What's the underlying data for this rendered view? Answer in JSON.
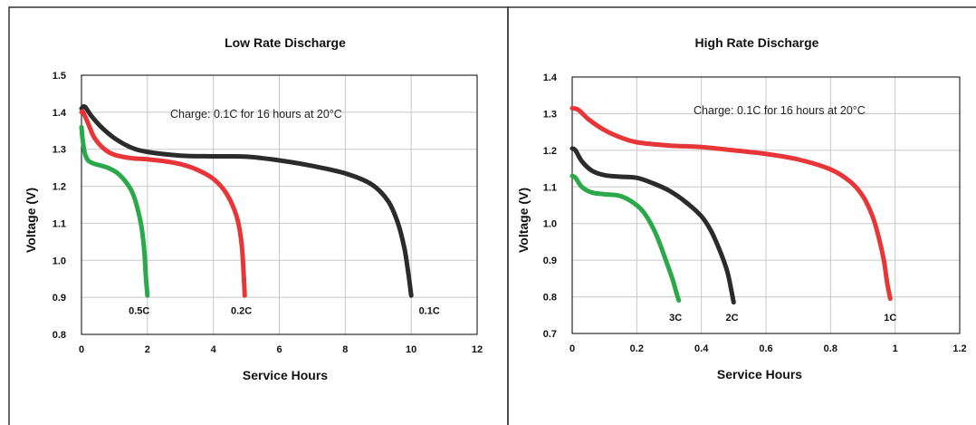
{
  "chart_data": [
    {
      "type": "line",
      "title": "Low Rate Discharge",
      "xlabel": "Service Hours",
      "ylabel": "Voltage (V)",
      "xlim": [
        0,
        12
      ],
      "ylim": [
        0.8,
        1.5
      ],
      "xticks": [
        "0",
        "2",
        "4",
        "6",
        "8",
        "10",
        "12"
      ],
      "yticks": [
        "0.8",
        "0.9",
        "1.0",
        "1.1",
        "1.2",
        "1.3",
        "1.4",
        "1.5"
      ],
      "grid": true,
      "annotation": "Charge: 0.1C for 16 hours at 20°C",
      "series": [
        {
          "name": "0.1C",
          "color": "#2b2b2b",
          "x": [
            0,
            0.1,
            0.3,
            0.6,
            1.0,
            1.5,
            2.0,
            3.0,
            4.0,
            5.0,
            6.0,
            7.0,
            8.0,
            8.8,
            9.3,
            9.6,
            9.8,
            9.92,
            10.0
          ],
          "y": [
            1.41,
            1.415,
            1.39,
            1.36,
            1.33,
            1.305,
            1.293,
            1.283,
            1.281,
            1.28,
            1.27,
            1.255,
            1.235,
            1.205,
            1.16,
            1.1,
            1.03,
            0.96,
            0.905
          ]
        },
        {
          "name": "0.2C",
          "color": "#e83538",
          "x": [
            0,
            0.05,
            0.2,
            0.4,
            0.7,
            1.0,
            1.5,
            2.0,
            2.5,
            3.0,
            3.5,
            4.0,
            4.4,
            4.7,
            4.85,
            4.92,
            4.95
          ],
          "y": [
            1.4,
            1.4,
            1.37,
            1.33,
            1.3,
            1.285,
            1.276,
            1.273,
            1.268,
            1.26,
            1.245,
            1.22,
            1.18,
            1.12,
            1.05,
            0.96,
            0.905
          ]
        },
        {
          "name": "0.5C",
          "color": "#2aa84a",
          "x": [
            0,
            0.03,
            0.1,
            0.2,
            0.35,
            0.5,
            0.8,
            1.1,
            1.4,
            1.6,
            1.8,
            1.9,
            1.95,
            2.0
          ],
          "y": [
            1.36,
            1.33,
            1.29,
            1.27,
            1.262,
            1.258,
            1.25,
            1.235,
            1.205,
            1.17,
            1.1,
            1.03,
            0.96,
            0.905
          ]
        }
      ],
      "curve_labels": [
        {
          "text": "0.5C",
          "x": 1.75,
          "y": 0.865
        },
        {
          "text": "0.2C",
          "x": 4.85,
          "y": 0.865
        },
        {
          "text": "0.1C",
          "x": 10.55,
          "y": 0.865
        }
      ]
    },
    {
      "type": "line",
      "title": "High Rate Discharge",
      "xlabel": "Service Hours",
      "ylabel": "Voltage (V)",
      "xlim": [
        0,
        1.2
      ],
      "ylim": [
        0.7,
        1.4
      ],
      "xticks": [
        "0",
        "0.2",
        "0.4",
        "0.6",
        "0.8",
        "1",
        "1.2"
      ],
      "yticks": [
        "0.7",
        "0.8",
        "0.9",
        "1.0",
        "1.1",
        "1.2",
        "1.3",
        "1.4"
      ],
      "grid": true,
      "annotation": "Charge: 0.1C for 16 hours at 20°C",
      "series": [
        {
          "name": "1C",
          "color": "#e83538",
          "x": [
            0,
            0.02,
            0.05,
            0.1,
            0.15,
            0.2,
            0.3,
            0.4,
            0.5,
            0.6,
            0.7,
            0.8,
            0.86,
            0.9,
            0.93,
            0.95,
            0.965,
            0.975,
            0.985
          ],
          "y": [
            1.315,
            1.31,
            1.285,
            1.255,
            1.235,
            1.222,
            1.213,
            1.209,
            1.2,
            1.19,
            1.175,
            1.148,
            1.115,
            1.075,
            1.02,
            0.96,
            0.9,
            0.84,
            0.795
          ]
        },
        {
          "name": "2C",
          "color": "#2b2b2b",
          "x": [
            0,
            0.01,
            0.03,
            0.06,
            0.1,
            0.15,
            0.2,
            0.25,
            0.3,
            0.35,
            0.4,
            0.43,
            0.46,
            0.48,
            0.49,
            0.5
          ],
          "y": [
            1.205,
            1.2,
            1.17,
            1.145,
            1.132,
            1.128,
            1.125,
            1.11,
            1.09,
            1.06,
            1.02,
            0.98,
            0.92,
            0.87,
            0.83,
            0.785
          ]
        },
        {
          "name": "3C",
          "color": "#2aa84a",
          "x": [
            0,
            0.01,
            0.03,
            0.06,
            0.1,
            0.15,
            0.2,
            0.23,
            0.26,
            0.29,
            0.31,
            0.32,
            0.33
          ],
          "y": [
            1.13,
            1.125,
            1.1,
            1.085,
            1.08,
            1.075,
            1.05,
            1.02,
            0.97,
            0.9,
            0.85,
            0.82,
            0.79
          ]
        }
      ],
      "curve_labels": [
        {
          "text": "3C",
          "x": 0.32,
          "y": 0.745
        },
        {
          "text": "2C",
          "x": 0.495,
          "y": 0.745
        },
        {
          "text": "1C",
          "x": 0.985,
          "y": 0.745
        }
      ]
    }
  ]
}
